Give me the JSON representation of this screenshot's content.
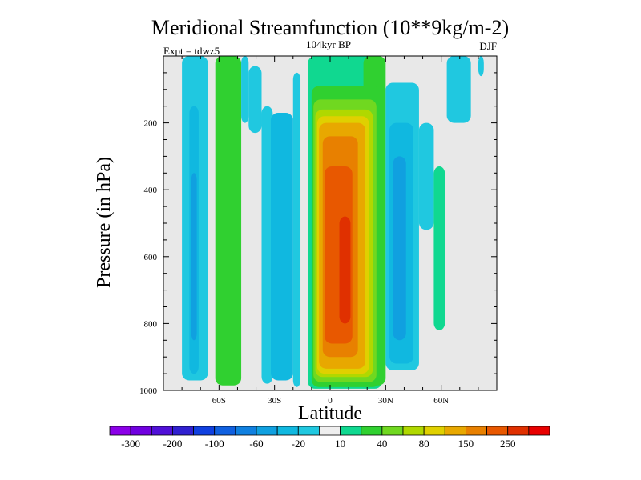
{
  "chart_data": {
    "type": "heatmap",
    "title": "Meridional Streamfunction (10**9kg/m-2)",
    "subtitle": "104kyr BP",
    "left_annotation": "Expt = tdwz5",
    "right_annotation": "DJF",
    "xlabel": "Latitude",
    "ylabel": "Pressure (in hPa)",
    "xlim": [
      -90,
      90
    ],
    "ylim": [
      1000,
      0
    ],
    "x_ticks": [
      {
        "value": -60,
        "label": "60S"
      },
      {
        "value": -30,
        "label": "30S"
      },
      {
        "value": 0,
        "label": "0"
      },
      {
        "value": 30,
        "label": "30N"
      },
      {
        "value": 60,
        "label": "60N"
      }
    ],
    "y_ticks": [
      {
        "value": 200,
        "label": "200"
      },
      {
        "value": 400,
        "label": "400"
      },
      {
        "value": 600,
        "label": "600"
      },
      {
        "value": 800,
        "label": "800"
      },
      {
        "value": 1000,
        "label": "1000"
      }
    ],
    "background_color": "#e8e8e8",
    "colorbar": {
      "colors": [
        "#8b00e8",
        "#7000e0",
        "#5010d8",
        "#3020d0",
        "#1040e0",
        "#1060e0",
        "#1080e0",
        "#10a0e0",
        "#10b8e0",
        "#20c8e0",
        "#eeeeee",
        "#10d890",
        "#30d030",
        "#70d820",
        "#b0d800",
        "#e0d000",
        "#e8a800",
        "#e88000",
        "#e85800",
        "#e03000",
        "#e80000"
      ],
      "labels": [
        {
          "after_index": 0,
          "text": "-300"
        },
        {
          "after_index": 2,
          "text": "-200"
        },
        {
          "after_index": 4,
          "text": "-100"
        },
        {
          "after_index": 6,
          "text": "-60"
        },
        {
          "after_index": 8,
          "text": "-20"
        },
        {
          "after_index": 10,
          "text": "10"
        },
        {
          "after_index": 12,
          "text": "40"
        },
        {
          "after_index": 14,
          "text": "80"
        },
        {
          "after_index": 16,
          "text": "150"
        },
        {
          "after_index": 18,
          "text": "250"
        }
      ]
    },
    "cells": [
      {
        "lat0": -80,
        "lat1": -66,
        "p0": 0,
        "p1": 970,
        "color": "#20c8e0"
      },
      {
        "lat0": -76,
        "lat1": -71,
        "p0": 150,
        "p1": 950,
        "color": "#10b8e0"
      },
      {
        "lat0": -75,
        "lat1": -72,
        "p0": 350,
        "p1": 850,
        "color": "#10a0e0"
      },
      {
        "lat0": -62,
        "lat1": -48,
        "p0": 0,
        "p1": 985,
        "color": "#30d030"
      },
      {
        "lat0": -48,
        "lat1": -44,
        "p0": 0,
        "p1": 200,
        "color": "#20c8e0"
      },
      {
        "lat0": -44,
        "lat1": -37,
        "p0": 30,
        "p1": 230,
        "color": "#20c8e0"
      },
      {
        "lat0": -37,
        "lat1": -31,
        "p0": 150,
        "p1": 980,
        "color": "#20c8e0"
      },
      {
        "lat0": -32,
        "lat1": -20,
        "p0": 170,
        "p1": 970,
        "color": "#10b8e0"
      },
      {
        "lat0": -20,
        "lat1": -16,
        "p0": 50,
        "p1": 990,
        "color": "#20c8e0"
      },
      {
        "lat0": -12,
        "lat1": 28,
        "p0": 0,
        "p1": 995,
        "color": "#10d890"
      },
      {
        "lat0": 18,
        "lat1": 30,
        "p0": 0,
        "p1": 985,
        "color": "#30d030"
      },
      {
        "lat0": -10,
        "lat1": 27,
        "p0": 90,
        "p1": 990,
        "color": "#30d030"
      },
      {
        "lat0": -9,
        "lat1": 25,
        "p0": 130,
        "p1": 975,
        "color": "#70d820"
      },
      {
        "lat0": -8,
        "lat1": 23,
        "p0": 160,
        "p1": 960,
        "color": "#b0d800"
      },
      {
        "lat0": -7,
        "lat1": 21,
        "p0": 180,
        "p1": 950,
        "color": "#e0d000"
      },
      {
        "lat0": -6,
        "lat1": 19,
        "p0": 200,
        "p1": 935,
        "color": "#e8a800"
      },
      {
        "lat0": -4,
        "lat1": 15,
        "p0": 240,
        "p1": 900,
        "color": "#e88000"
      },
      {
        "lat0": -3,
        "lat1": 12,
        "p0": 330,
        "p1": 860,
        "color": "#e85800"
      },
      {
        "lat0": 5,
        "lat1": 11,
        "p0": 480,
        "p1": 800,
        "color": "#e03000"
      },
      {
        "lat0": 30,
        "lat1": 48,
        "p0": 80,
        "p1": 940,
        "color": "#20c8e0"
      },
      {
        "lat0": 32,
        "lat1": 45,
        "p0": 200,
        "p1": 920,
        "color": "#10b8e0"
      },
      {
        "lat0": 34,
        "lat1": 41,
        "p0": 300,
        "p1": 850,
        "color": "#10a0e0"
      },
      {
        "lat0": 48,
        "lat1": 56,
        "p0": 200,
        "p1": 520,
        "color": "#20c8e0"
      },
      {
        "lat0": 56,
        "lat1": 62,
        "p0": 330,
        "p1": 820,
        "color": "#10d890"
      },
      {
        "lat0": 63,
        "lat1": 76,
        "p0": 0,
        "p1": 200,
        "color": "#20c8e0"
      },
      {
        "lat0": 80,
        "lat1": 83,
        "p0": 0,
        "p1": 60,
        "color": "#20c8e0"
      },
      {
        "lat0": 98,
        "lat1": 98,
        "p0": 0,
        "p1": 0,
        "color": "#ffffff"
      }
    ]
  }
}
